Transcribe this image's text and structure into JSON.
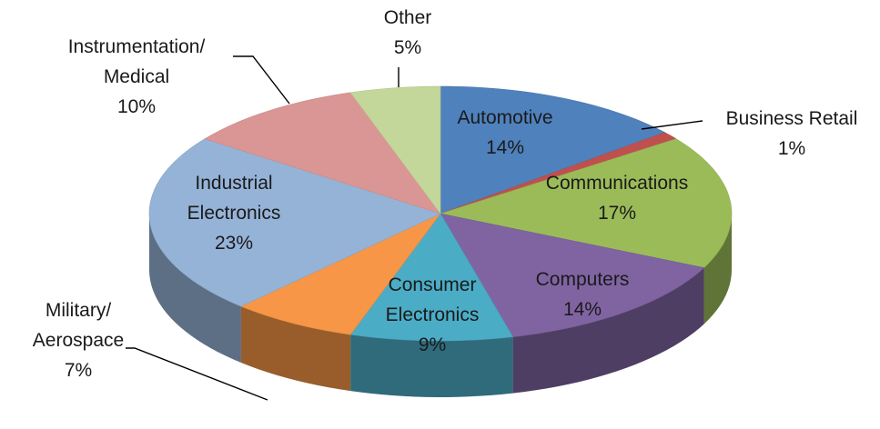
{
  "chart_data": {
    "type": "pie",
    "style": "3d",
    "title": "",
    "legend": "none",
    "slices": [
      {
        "label": "Automotive",
        "value": 14,
        "value_label": "14%",
        "color": "#4f81bd"
      },
      {
        "label": "Business Retail",
        "value": 1,
        "value_label": "1%",
        "color": "#c0504d"
      },
      {
        "label": "Communications",
        "value": 17,
        "value_label": "17%",
        "color": "#9bbb59"
      },
      {
        "label": "Computers",
        "value": 14,
        "value_label": "14%",
        "color": "#8064a2"
      },
      {
        "label": "Consumer Electronics",
        "value": 9,
        "value_label": "9%",
        "color": "#4bacc6"
      },
      {
        "label": "Military/ Aerospace",
        "value": 7,
        "value_label": "7%",
        "color": "#f79646"
      },
      {
        "label": "Industrial Electronics",
        "value": 23,
        "value_label": "23%",
        "color": "#95b3d7"
      },
      {
        "label": "Instrumentation/ Medical",
        "value": 10,
        "value_label": "10%",
        "color": "#da9694"
      },
      {
        "label": "Other",
        "value": 5,
        "value_label": "5%",
        "color": "#c4d79b"
      }
    ]
  }
}
